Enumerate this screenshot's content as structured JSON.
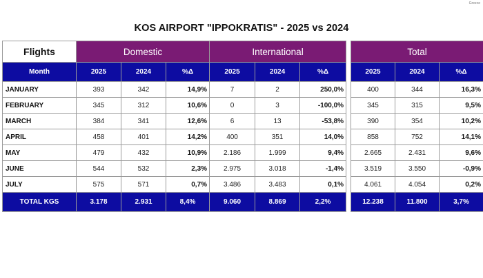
{
  "credit": "Greece",
  "title": "KOS AIRPORT \"IPPOKRATIS\" - 2025 vs 2024",
  "headers": {
    "flights": "Flights",
    "domestic": "Domestic",
    "international": "International",
    "total": "Total",
    "month": "Month",
    "y2025": "2025",
    "y2024": "2024",
    "pct": "%Δ"
  },
  "rows": [
    {
      "month": "JANUARY",
      "d25": "393",
      "d24": "342",
      "dp": "14,9%",
      "i25": "7",
      "i24": "2",
      "ip": "250,0%",
      "t25": "400",
      "t24": "344",
      "tp": "16,3%"
    },
    {
      "month": "FEBRUARY",
      "d25": "345",
      "d24": "312",
      "dp": "10,6%",
      "i25": "0",
      "i24": "3",
      "ip": "-100,0%",
      "t25": "345",
      "t24": "315",
      "tp": "9,5%"
    },
    {
      "month": "MARCH",
      "d25": "384",
      "d24": "341",
      "dp": "12,6%",
      "i25": "6",
      "i24": "13",
      "ip": "-53,8%",
      "t25": "390",
      "t24": "354",
      "tp": "10,2%"
    },
    {
      "month": "APRIL",
      "d25": "458",
      "d24": "401",
      "dp": "14,2%",
      "i25": "400",
      "i24": "351",
      "ip": "14,0%",
      "t25": "858",
      "t24": "752",
      "tp": "14,1%"
    },
    {
      "month": "MAY",
      "d25": "479",
      "d24": "432",
      "dp": "10,9%",
      "i25": "2.186",
      "i24": "1.999",
      "ip": "9,4%",
      "t25": "2.665",
      "t24": "2.431",
      "tp": "9,6%"
    },
    {
      "month": "JUNE",
      "d25": "544",
      "d24": "532",
      "dp": "2,3%",
      "i25": "2.975",
      "i24": "3.018",
      "ip": "-1,4%",
      "t25": "3.519",
      "t24": "3.550",
      "tp": "-0,9%"
    },
    {
      "month": "JULY",
      "d25": "575",
      "d24": "571",
      "dp": "0,7%",
      "i25": "3.486",
      "i24": "3.483",
      "ip": "0,1%",
      "t25": "4.061",
      "t24": "4.054",
      "tp": "0,2%"
    }
  ],
  "total": {
    "label": "TOTAL KGS",
    "d25": "3.178",
    "d24": "2.931",
    "dp": "8,4%",
    "i25": "9.060",
    "i24": "8.869",
    "ip": "2,2%",
    "t25": "12.238",
    "t24": "11.800",
    "tp": "3,7%"
  }
}
